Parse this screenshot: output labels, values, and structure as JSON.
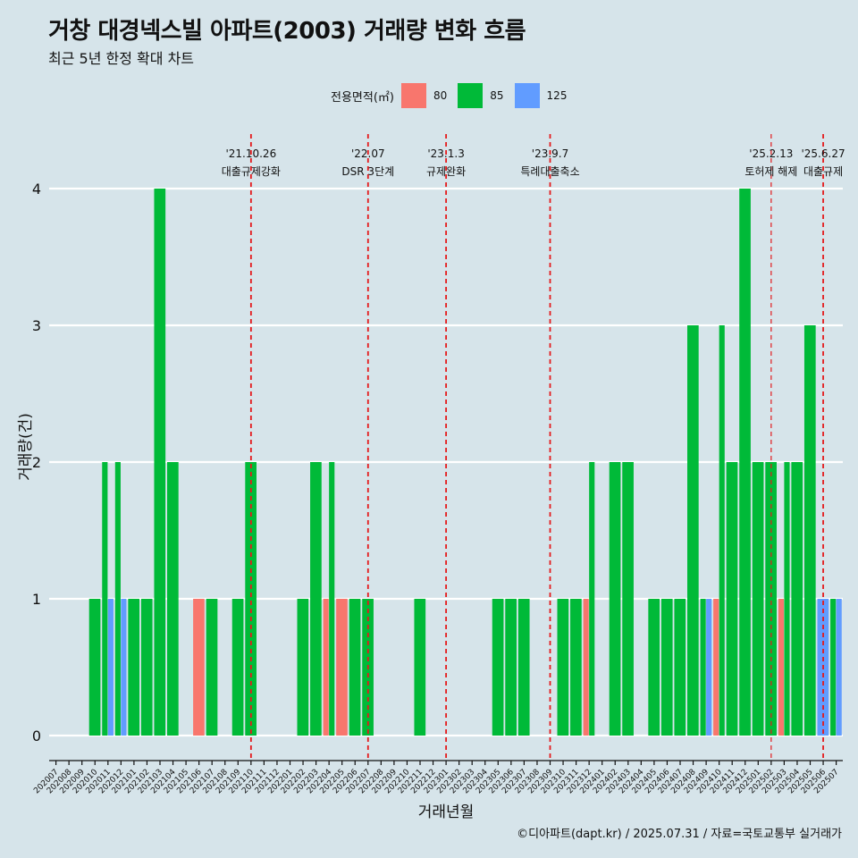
{
  "title": "거창 대경넥스빌 아파트(2003) 거래량 변화 흐름",
  "subtitle": "최근 5년 한정 확대 차트",
  "caption": "©디아파트(dapt.kr) / 2025.07.31 / 자료=국토교통부 실거래가",
  "legend_title": "전용면적(㎡)",
  "colors": {
    "80": "#f8766d",
    "85": "#00ba38",
    "125": "#619cff",
    "event_line": "#e41a1c",
    "grid": "#ffffff"
  },
  "chart_data": {
    "type": "bar",
    "stacked": "dodge",
    "xlabel": "거래년월",
    "ylabel": "거래량(건)",
    "ylim": [
      0,
      4
    ],
    "yticks": [
      0,
      1,
      2,
      3,
      4
    ],
    "categories": [
      "202007",
      "202008",
      "202009",
      "202010",
      "202011",
      "202012",
      "202101",
      "202102",
      "202103",
      "202104",
      "202105",
      "202106",
      "202107",
      "202108",
      "202109",
      "202110",
      "202111",
      "202112",
      "202201",
      "202202",
      "202203",
      "202204",
      "202205",
      "202206",
      "202207",
      "202208",
      "202209",
      "202210",
      "202211",
      "202212",
      "202301",
      "202302",
      "202303",
      "202304",
      "202305",
      "202306",
      "202307",
      "202308",
      "202309",
      "202310",
      "202311",
      "202312",
      "202401",
      "202402",
      "202403",
      "202404",
      "202405",
      "202406",
      "202407",
      "202408",
      "202409",
      "202410",
      "202411",
      "202412",
      "202501",
      "202502",
      "202503",
      "202504",
      "202505",
      "202506",
      "202507"
    ],
    "series": [
      {
        "name": "80",
        "values": [
          0,
          0,
          0,
          0,
          0,
          0,
          0,
          0,
          0,
          0,
          0,
          1,
          0,
          0,
          0,
          0,
          0,
          0,
          0,
          0,
          0,
          1,
          1,
          0,
          0,
          0,
          0,
          0,
          0,
          0,
          0,
          0,
          0,
          0,
          0,
          0,
          0,
          0,
          0,
          0,
          0,
          1,
          0,
          0,
          0,
          0,
          0,
          0,
          0,
          0,
          0,
          1,
          0,
          0,
          0,
          0,
          1,
          0,
          0,
          0,
          0
        ]
      },
      {
        "name": "85",
        "values": [
          0,
          0,
          0,
          1,
          2,
          2,
          1,
          1,
          4,
          2,
          0,
          0,
          1,
          0,
          1,
          2,
          0,
          0,
          0,
          1,
          2,
          2,
          0,
          1,
          1,
          0,
          0,
          0,
          1,
          0,
          0,
          0,
          0,
          0,
          1,
          1,
          1,
          0,
          0,
          1,
          1,
          2,
          0,
          2,
          2,
          0,
          1,
          1,
          1,
          3,
          1,
          3,
          2,
          4,
          2,
          2,
          2,
          2,
          3,
          0,
          1
        ]
      },
      {
        "name": "125",
        "values": [
          0,
          0,
          0,
          0,
          1,
          1,
          0,
          0,
          0,
          0,
          0,
          0,
          0,
          0,
          0,
          0,
          0,
          0,
          0,
          0,
          0,
          0,
          0,
          0,
          0,
          0,
          0,
          0,
          0,
          0,
          0,
          0,
          0,
          0,
          0,
          0,
          0,
          0,
          0,
          0,
          0,
          0,
          0,
          0,
          0,
          0,
          0,
          0,
          0,
          0,
          1,
          0,
          0,
          0,
          0,
          0,
          0,
          0,
          0,
          1,
          1
        ]
      }
    ],
    "events": [
      {
        "date": "'21.10.26",
        "label": "대출규제강화",
        "at": "202110"
      },
      {
        "date": "'22.07",
        "label": "DSR 3단계",
        "at": "202207"
      },
      {
        "date": "'23.1.3",
        "label": "규제완화",
        "at": "202301"
      },
      {
        "date": "'23.9.7",
        "label": "특례대출축소",
        "at": "202309"
      },
      {
        "date": "'25.2.13",
        "label": "토허제 해제",
        "at": "202502"
      },
      {
        "date": "'25.6.27",
        "label": "대출규제",
        "at": "202506"
      }
    ]
  }
}
